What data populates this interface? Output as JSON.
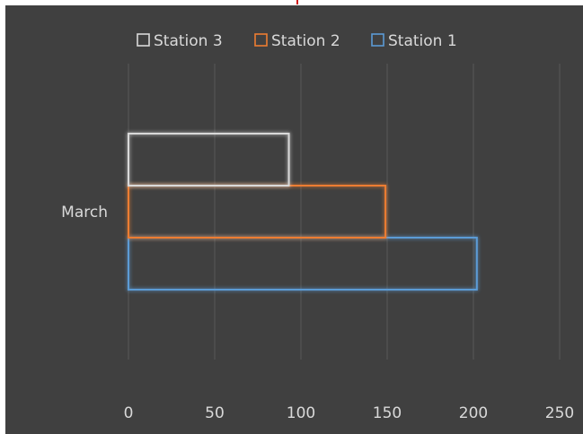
{
  "chart_data": {
    "type": "bar",
    "orientation": "horizontal",
    "categories": [
      "March"
    ],
    "series": [
      {
        "name": "Station 1",
        "values": [
          202
        ],
        "color": "#5b9bd5"
      },
      {
        "name": "Station 2",
        "values": [
          149
        ],
        "color": "#ed7d31"
      },
      {
        "name": "Station 3",
        "values": [
          93
        ],
        "color": "#d9d9d9"
      }
    ],
    "legend_order": [
      "Station 3",
      "Station 2",
      "Station 1"
    ],
    "xticks": [
      "0",
      "50",
      "100",
      "150",
      "200",
      "250"
    ],
    "xlim": [
      0,
      250
    ],
    "title": "",
    "xlabel": "",
    "ylabel": "",
    "grid": "vertical",
    "legend_position": "top",
    "bar_style": "outline-with-glow",
    "background_color": "#404040",
    "gridline_color": "#595959",
    "text_color": "#d9d9d9"
  }
}
